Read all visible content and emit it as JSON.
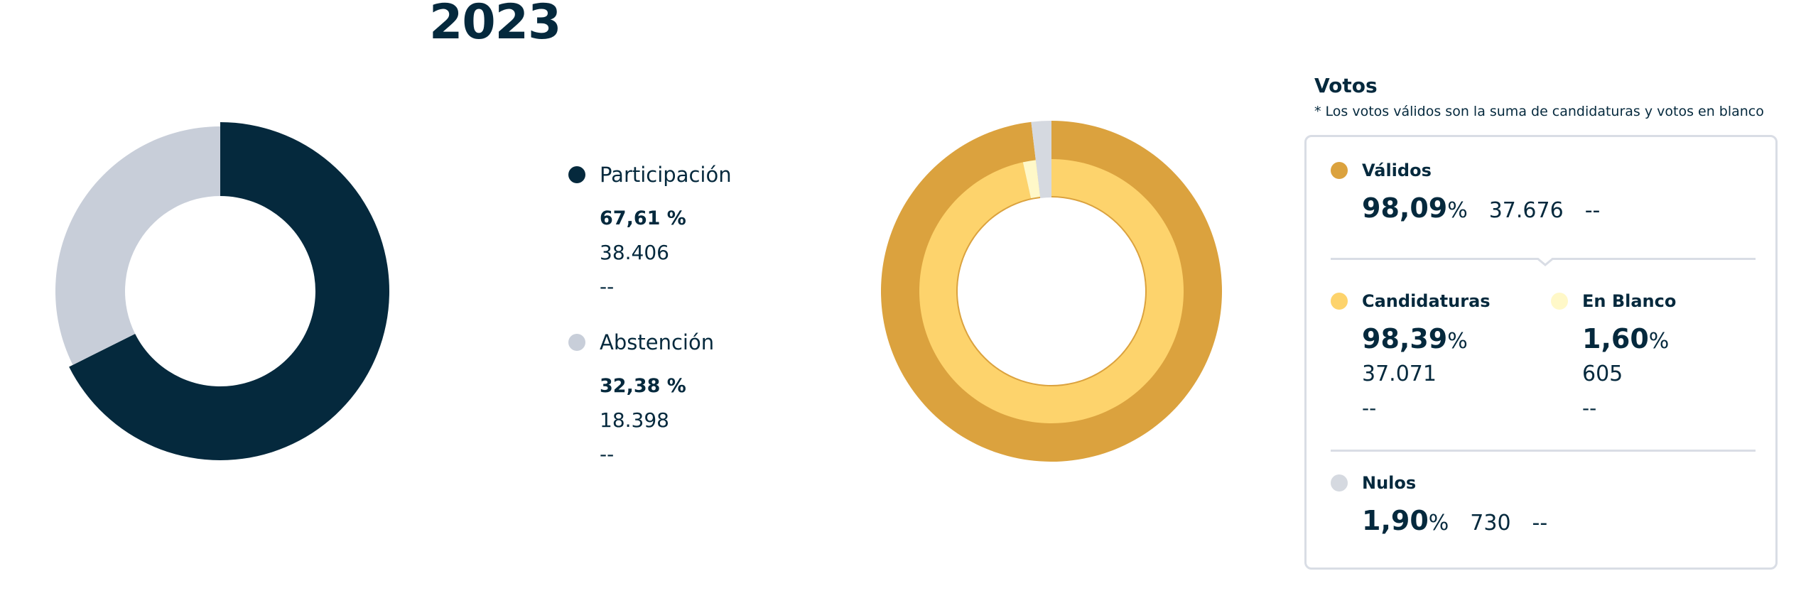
{
  "year": "2023",
  "chart_data": [
    {
      "type": "pie",
      "categories": [
        "Participación",
        "Abstención"
      ],
      "values": [
        67.61,
        32.38
      ],
      "counts": [
        "38.406",
        "18.398"
      ],
      "colors": [
        "#05293d",
        "#c8ced9"
      ]
    },
    {
      "type": "pie",
      "series": [
        {
          "name": "Votos",
          "categories": [
            "Válidos",
            "Nulos"
          ],
          "values": [
            98.09,
            1.9
          ],
          "colors": [
            "#dba23e",
            "#d5d9e0"
          ]
        },
        {
          "name": "Válidos",
          "categories": [
            "Candidaturas",
            "En Blanco"
          ],
          "values": [
            98.39,
            1.6
          ],
          "colors": [
            "#fdd36c",
            "#fff8c8"
          ]
        }
      ]
    }
  ],
  "legend": {
    "participacion": {
      "name": "Participación",
      "pct": "67,61 %",
      "count": "38.406",
      "extra": "--",
      "color": "#05293d"
    },
    "abstencion": {
      "name": "Abstención",
      "pct": "32,38 %",
      "count": "18.398",
      "extra": "--",
      "color": "#c8ced9"
    }
  },
  "votos": {
    "title": "Votos",
    "note": "* Los votos válidos son la suma de candidaturas y votos en blanco",
    "validos": {
      "label": "Válidos",
      "pct": "98,09",
      "count": "37.676",
      "extra": "--",
      "color": "#dba23e"
    },
    "candidaturas": {
      "label": "Candidaturas",
      "pct": "98,39",
      "count": "37.071",
      "extra": "--",
      "color": "#fdd36c"
    },
    "en_blanco": {
      "label": "En Blanco",
      "pct": "1,60",
      "count": "605",
      "extra": "--",
      "color": "#fff8c8"
    },
    "nulos": {
      "label": "Nulos",
      "pct": "1,90",
      "count": "730",
      "extra": "--",
      "color": "#d5d9e0"
    },
    "pct_sign": "%"
  }
}
